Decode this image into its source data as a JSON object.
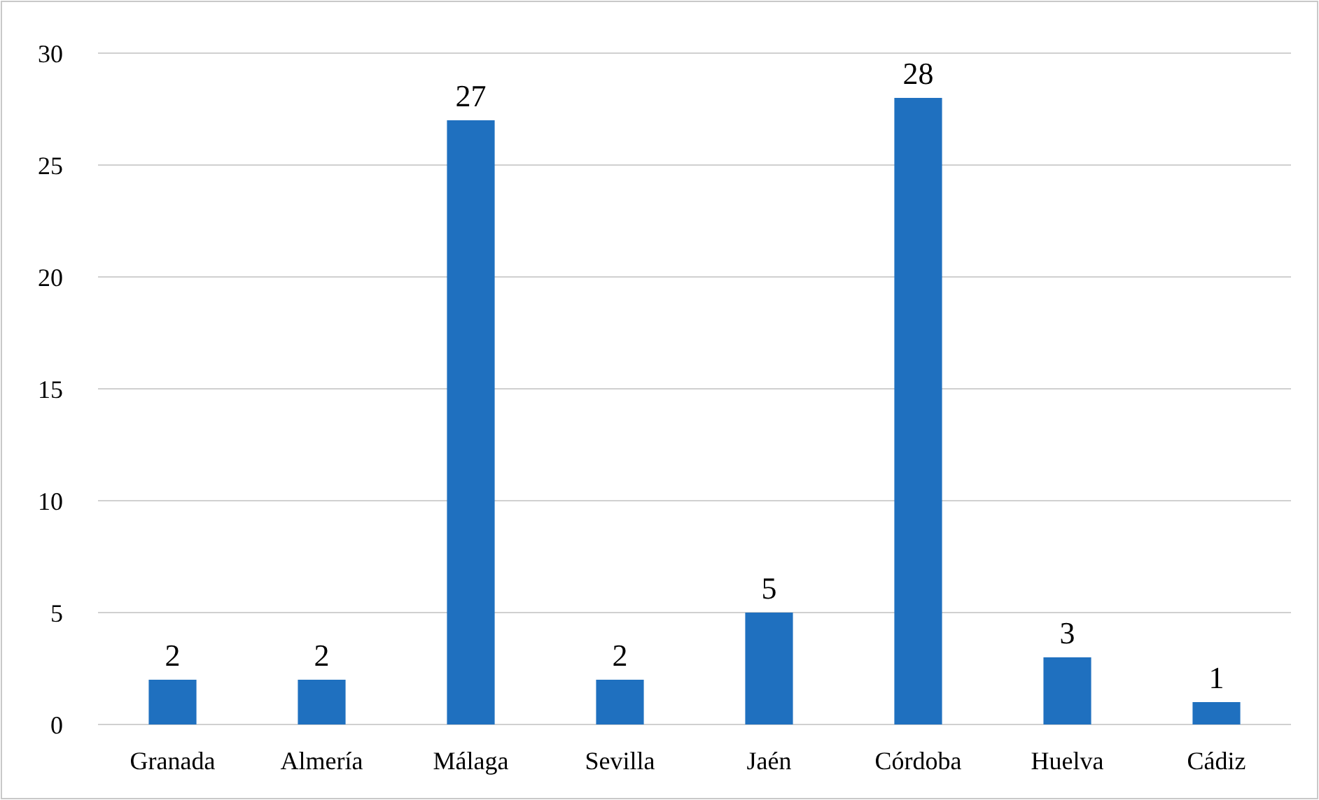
{
  "chart_data": {
    "type": "bar",
    "categories": [
      "Granada",
      "Almería",
      "Málaga",
      "Sevilla",
      "Jaén",
      "Córdoba",
      "Huelva",
      "Cádiz"
    ],
    "values": [
      2,
      2,
      27,
      2,
      5,
      28,
      3,
      1
    ],
    "color": "#1f70bf",
    "ylim": [
      0,
      30
    ],
    "yticks": [
      0,
      5,
      10,
      15,
      20,
      25,
      30
    ],
    "grid": "y",
    "data_labels": true
  }
}
